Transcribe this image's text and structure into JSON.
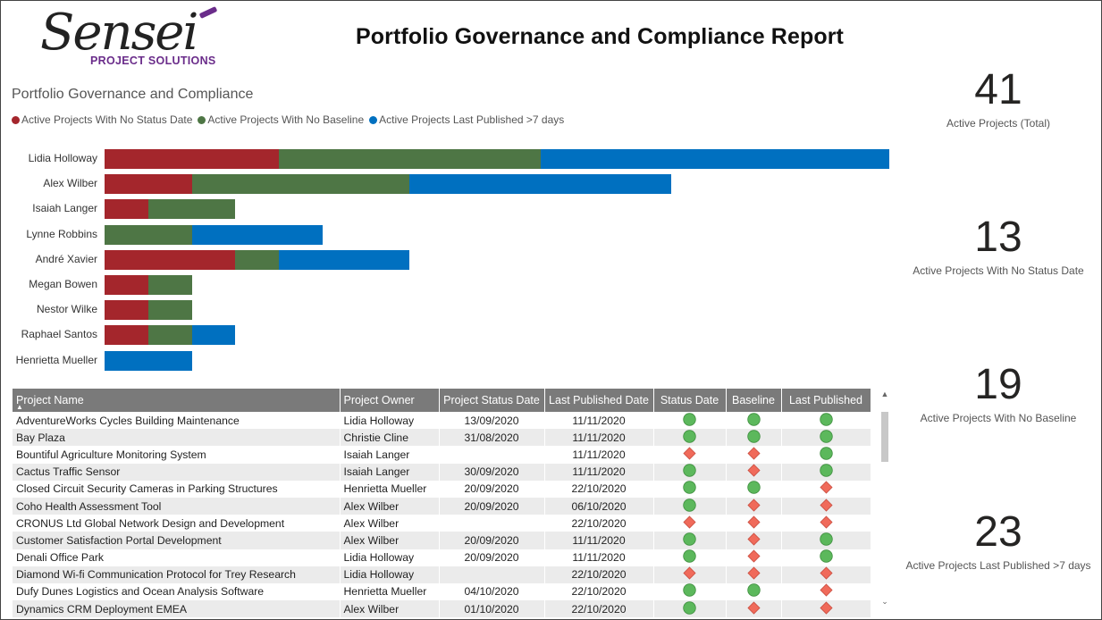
{
  "header": {
    "logo_text": "Sensei",
    "logo_subtext": "PROJECT SOLUTIONS",
    "report_title": "Portfolio Governance and Compliance Report"
  },
  "colors": {
    "no_status_date": "#A4262C",
    "no_baseline": "#4E7645",
    "last_published": "#0070C0"
  },
  "chart_data": {
    "type": "bar",
    "orientation": "horizontal",
    "stacked": true,
    "title": "Portfolio Governance and Compliance",
    "categories": [
      "Lidia Holloway",
      "Alex Wilber",
      "Isaiah Langer",
      "Lynne Robbins",
      "André Xavier",
      "Megan Bowen",
      "Nestor Wilke",
      "Raphael Santos",
      "Henrietta Mueller"
    ],
    "series": [
      {
        "name": "Active Projects With No Status Date",
        "color": "#A4262C",
        "values": [
          4,
          2,
          1,
          0,
          3,
          1,
          1,
          1,
          0
        ]
      },
      {
        "name": "Active Projects With No Baseline",
        "color": "#4E7645",
        "values": [
          6,
          5,
          2,
          2,
          1,
          1,
          1,
          1,
          0
        ]
      },
      {
        "name": "Active Projects Last Published >7 days",
        "color": "#0070C0",
        "values": [
          8,
          6,
          0,
          3,
          3,
          0,
          0,
          1,
          2
        ]
      }
    ],
    "legend_position": "top-left",
    "grid": false
  },
  "kpis": [
    {
      "value": "41",
      "label": "Active Projects (Total)"
    },
    {
      "value": "13",
      "label": "Active Projects With No Status Date"
    },
    {
      "value": "19",
      "label": "Active Projects With No Baseline"
    },
    {
      "value": "23",
      "label": "Active Projects Last Published >7 days"
    }
  ],
  "table": {
    "columns": [
      "Project Name",
      "Project Owner",
      "Project Status Date",
      "Last Published Date",
      "Status Date",
      "Baseline",
      "Last Published"
    ],
    "sorted_column": "Project Name",
    "rows": [
      {
        "name": "AdventureWorks Cycles Building Maintenance",
        "owner": "Lidia Holloway",
        "status_date": "13/09/2020",
        "published": "11/11/2020",
        "ind": [
          "ok",
          "ok",
          "ok"
        ]
      },
      {
        "name": "Bay Plaza",
        "owner": "Christie Cline",
        "status_date": "31/08/2020",
        "published": "11/11/2020",
        "ind": [
          "ok",
          "ok",
          "ok"
        ]
      },
      {
        "name": "Bountiful Agriculture Monitoring System",
        "owner": "Isaiah Langer",
        "status_date": "",
        "published": "11/11/2020",
        "ind": [
          "warn",
          "warn",
          "ok"
        ]
      },
      {
        "name": "Cactus Traffic Sensor",
        "owner": "Isaiah Langer",
        "status_date": "30/09/2020",
        "published": "11/11/2020",
        "ind": [
          "ok",
          "warn",
          "ok"
        ]
      },
      {
        "name": "Closed Circuit Security Cameras in Parking Structures",
        "owner": "Henrietta Mueller",
        "status_date": "20/09/2020",
        "published": "22/10/2020",
        "ind": [
          "ok",
          "ok",
          "warn"
        ]
      },
      {
        "name": "Coho Health Assessment Tool",
        "owner": "Alex Wilber",
        "status_date": "20/09/2020",
        "published": "06/10/2020",
        "ind": [
          "ok",
          "warn",
          "warn"
        ]
      },
      {
        "name": "CRONUS Ltd Global Network Design and Development",
        "owner": "Alex Wilber",
        "status_date": "",
        "published": "22/10/2020",
        "ind": [
          "warn",
          "warn",
          "warn"
        ]
      },
      {
        "name": "Customer Satisfaction Portal Development",
        "owner": "Alex Wilber",
        "status_date": "20/09/2020",
        "published": "11/11/2020",
        "ind": [
          "ok",
          "warn",
          "ok"
        ]
      },
      {
        "name": "Denali Office Park",
        "owner": "Lidia Holloway",
        "status_date": "20/09/2020",
        "published": "11/11/2020",
        "ind": [
          "ok",
          "warn",
          "ok"
        ]
      },
      {
        "name": "Diamond Wi-fi Communication Protocol for Trey Research",
        "owner": "Lidia Holloway",
        "status_date": "",
        "published": "22/10/2020",
        "ind": [
          "warn",
          "warn",
          "warn"
        ]
      },
      {
        "name": "Dufy Dunes Logistics and Ocean Analysis Software",
        "owner": "Henrietta Mueller",
        "status_date": "04/10/2020",
        "published": "22/10/2020",
        "ind": [
          "ok",
          "ok",
          "warn"
        ]
      },
      {
        "name": "Dynamics CRM Deployment EMEA",
        "owner": "Alex Wilber",
        "status_date": "01/10/2020",
        "published": "22/10/2020",
        "ind": [
          "ok",
          "warn",
          "warn"
        ]
      }
    ]
  },
  "icons": {
    "ok": "green-circle-icon",
    "warn": "red-diamond-icon",
    "sort": "sort-ascending-icon",
    "scroll_up": "chevron-up-icon",
    "scroll_down": "chevron-down-icon"
  }
}
